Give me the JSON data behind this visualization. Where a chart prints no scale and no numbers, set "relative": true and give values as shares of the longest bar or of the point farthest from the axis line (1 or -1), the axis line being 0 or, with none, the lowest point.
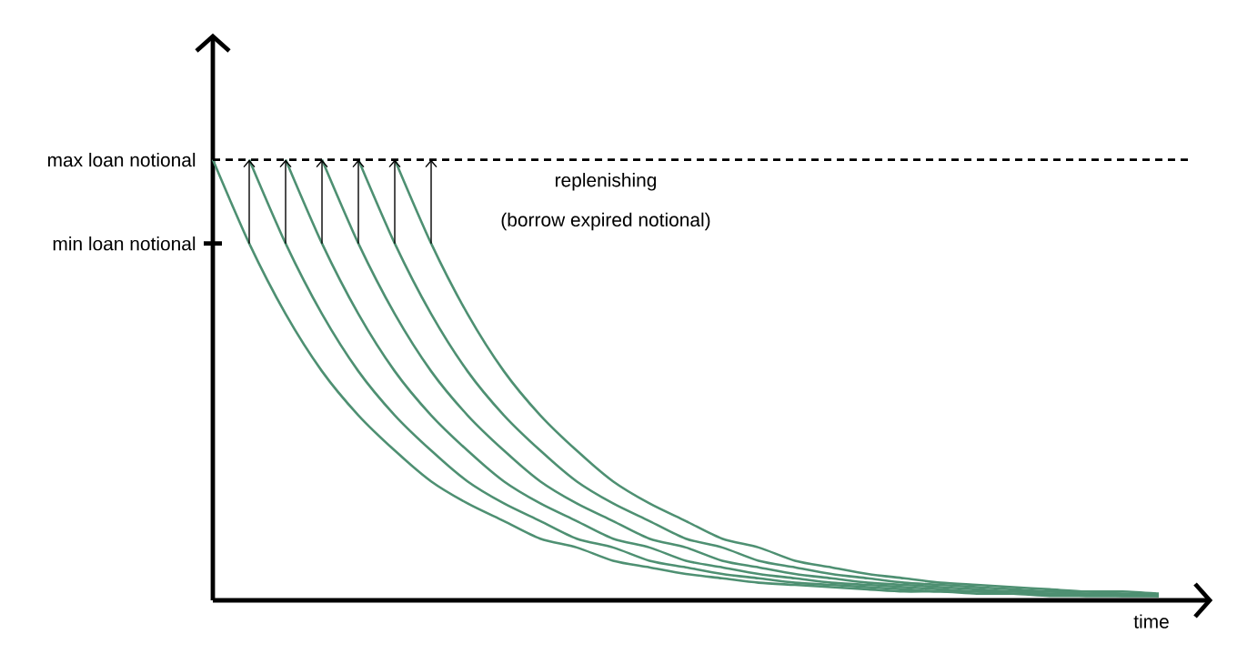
{
  "chart_data": {
    "type": "line",
    "relative": true,
    "xlabel": "time",
    "categories": [
      null,
      null,
      null,
      null,
      null,
      null,
      null,
      null,
      null,
      null,
      null,
      null,
      null,
      null,
      null,
      null,
      null,
      null,
      null,
      null,
      null,
      null,
      null,
      null,
      null,
      null,
      null
    ],
    "series": [
      {
        "color": "#4e9072",
        "values": [
          1,
          0.81,
          0.65,
          0.52,
          0.42,
          0.34,
          0.27,
          0.22,
          0.18,
          0.14,
          0.12,
          0.09,
          0.075,
          0.06,
          0.05,
          0.04,
          0.035,
          0.03,
          0.025,
          0.02,
          0.02,
          0.015,
          0.015,
          0.01,
          0.01,
          0.01,
          0.01
        ]
      },
      {
        "color": "#4e9072",
        "values": [
          null,
          1,
          0.81,
          0.65,
          0.52,
          0.42,
          0.34,
          0.27,
          0.22,
          0.18,
          0.14,
          0.12,
          0.09,
          0.075,
          0.06,
          0.05,
          0.04,
          0.035,
          0.03,
          0.025,
          0.02,
          0.02,
          0.015,
          0.015,
          0.01,
          0.01,
          0.01
        ]
      },
      {
        "color": "#4e9072",
        "values": [
          null,
          null,
          1,
          0.81,
          0.65,
          0.52,
          0.42,
          0.34,
          0.27,
          0.22,
          0.18,
          0.14,
          0.12,
          0.09,
          0.075,
          0.06,
          0.05,
          0.04,
          0.035,
          0.03,
          0.025,
          0.02,
          0.02,
          0.015,
          0.015,
          0.01,
          0.01
        ]
      },
      {
        "color": "#4e9072",
        "values": [
          null,
          null,
          null,
          1,
          0.81,
          0.65,
          0.52,
          0.42,
          0.34,
          0.27,
          0.22,
          0.18,
          0.14,
          0.12,
          0.09,
          0.075,
          0.06,
          0.05,
          0.04,
          0.035,
          0.03,
          0.025,
          0.02,
          0.02,
          0.015,
          0.015,
          0.01
        ]
      },
      {
        "color": "#4e9072",
        "values": [
          null,
          null,
          null,
          null,
          1,
          0.81,
          0.65,
          0.52,
          0.42,
          0.34,
          0.27,
          0.22,
          0.18,
          0.14,
          0.12,
          0.09,
          0.075,
          0.06,
          0.05,
          0.04,
          0.035,
          0.03,
          0.025,
          0.02,
          0.02,
          0.015,
          0.015
        ]
      },
      {
        "color": "#4e9072",
        "values": [
          null,
          null,
          null,
          null,
          null,
          1,
          0.81,
          0.65,
          0.52,
          0.42,
          0.34,
          0.27,
          0.22,
          0.18,
          0.14,
          0.12,
          0.09,
          0.075,
          0.06,
          0.05,
          0.04,
          0.035,
          0.03,
          0.025,
          0.02,
          0.02,
          0.015
        ]
      }
    ],
    "ref_lines": [
      {
        "axis": "y",
        "value": 1,
        "label": "max loan notional",
        "line_style": "dashed",
        "color": "#000000"
      }
    ],
    "annotations": [
      "min loan notional",
      "replenishing",
      "(borrow expired notional)"
    ]
  }
}
